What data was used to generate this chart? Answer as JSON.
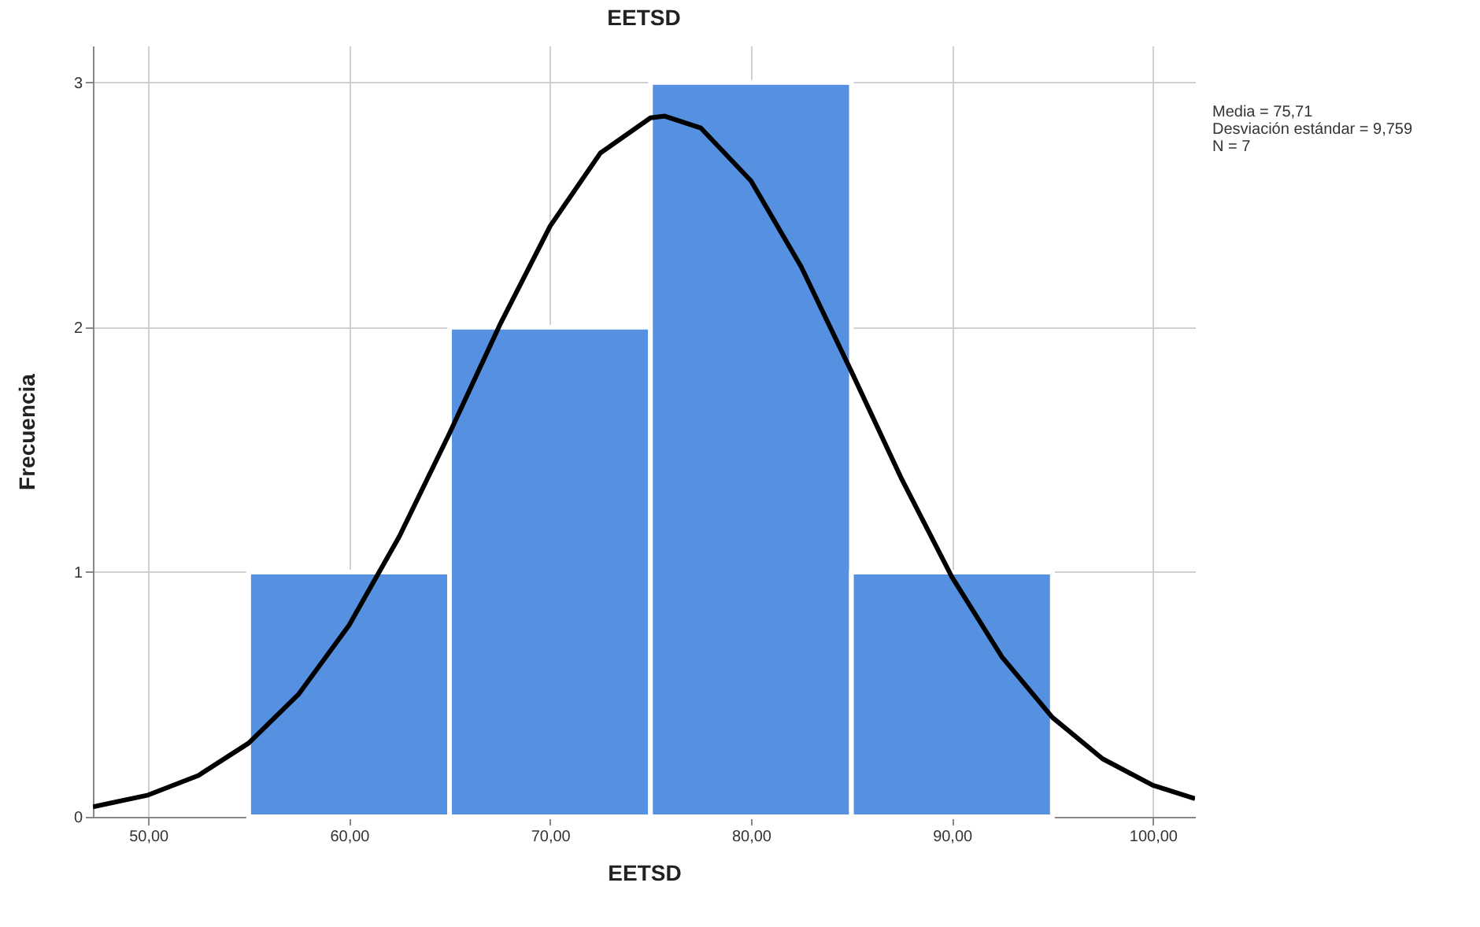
{
  "chart_data": {
    "type": "histogram",
    "title": "EETSD",
    "xlabel": "EETSD",
    "ylabel": "Frecuencia",
    "bins": [
      55,
      65,
      75,
      85,
      95
    ],
    "values": [
      1,
      2,
      3,
      1
    ],
    "color": "#5591e0",
    "series": [
      {
        "type": "line",
        "color": "#000000",
        "x": [
          47.25,
          50,
          52.5,
          55,
          57.5,
          60,
          62.5,
          65,
          67.5,
          70,
          72.5,
          75,
          75.71,
          77.5,
          80,
          82.5,
          85,
          87.5,
          90,
          92.5,
          95,
          97.5,
          100,
          102.1
        ],
        "values": [
          0.041,
          0.089,
          0.169,
          0.301,
          0.502,
          0.783,
          1.145,
          1.567,
          2.009,
          2.412,
          2.711,
          2.855,
          2.862,
          2.814,
          2.598,
          2.247,
          1.819,
          1.38,
          0.98,
          0.652,
          0.406,
          0.237,
          0.129,
          0.074
        ]
      }
    ],
    "xlim": [
      47.25,
      102.1
    ],
    "ylim": [
      0,
      3.15
    ],
    "xticks": [
      {
        "value": 50,
        "label": "50,00"
      },
      {
        "value": 60,
        "label": "60,00"
      },
      {
        "value": 70,
        "label": "70,00"
      },
      {
        "value": 80,
        "label": "80,00"
      },
      {
        "value": 90,
        "label": "90,00"
      },
      {
        "value": 100,
        "label": "100,00"
      }
    ],
    "yticks": [
      0,
      1,
      2,
      3
    ],
    "grid": true,
    "annotations": [
      "Media = 75,71",
      "Desviación estándar = 9,759",
      "N = 7"
    ]
  }
}
